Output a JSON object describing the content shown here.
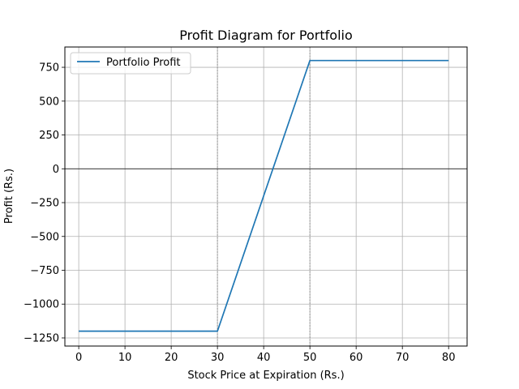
{
  "chart_data": {
    "type": "line",
    "title": "Profit Diagram for Portfolio",
    "xlabel": "Stock Price at Expiration (Rs.)",
    "ylabel": "Profit (Rs.)",
    "xlim": [
      -3,
      84
    ],
    "ylim": [
      -1310,
      900
    ],
    "xticks": [
      0,
      10,
      20,
      30,
      40,
      50,
      60,
      70,
      80
    ],
    "yticks": [
      -1250,
      -1000,
      -750,
      -500,
      -250,
      0,
      250,
      500,
      750
    ],
    "xtick_labels": [
      "0",
      "10",
      "20",
      "30",
      "40",
      "50",
      "60",
      "70",
      "80"
    ],
    "ytick_labels": [
      "−1250",
      "−1000",
      "−750",
      "−500",
      "−250",
      "0",
      "250",
      "500",
      "750"
    ],
    "grid": true,
    "legend": "top-left",
    "series": [
      {
        "name": "Portfolio Profit",
        "color": "#1f77b4",
        "x": [
          0,
          30,
          50,
          80
        ],
        "y": [
          -1200,
          -1200,
          800,
          800
        ]
      }
    ],
    "reference_lines": {
      "horizontal": [
        0
      ],
      "vertical": [
        30,
        50
      ],
      "horizontal_color": "#000000",
      "vertical_color": "#808080"
    }
  }
}
